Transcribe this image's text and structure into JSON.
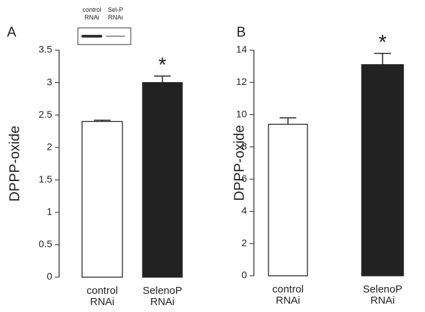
{
  "chart_data": [
    {
      "type": "bar",
      "panel_label": "A",
      "ylabel": "DPPP-oxide",
      "categories": [
        "control RNAi",
        "SelenoP RNAi"
      ],
      "values": [
        2.4,
        3.0
      ],
      "errors": [
        0.02,
        0.1
      ],
      "colors": [
        "#ffffff",
        "#222222"
      ],
      "annotation": "*",
      "inset_labels": [
        "control RNAi",
        "Sel-P RNAi"
      ],
      "ylim": [
        0,
        3.5
      ],
      "yticks": [
        0,
        0.5,
        1,
        1.5,
        2,
        2.5,
        3,
        3.5
      ]
    },
    {
      "type": "bar",
      "panel_label": "B",
      "ylabel": "DPPP-oxide",
      "categories": [
        "control RNAi",
        "SelenoP RNAi"
      ],
      "values": [
        9.4,
        13.1
      ],
      "errors": [
        0.4,
        0.7
      ],
      "colors": [
        "#ffffff",
        "#222222"
      ],
      "annotation": "*",
      "ylim": [
        0,
        14
      ],
      "yticks": [
        0,
        2,
        4,
        6,
        8,
        10,
        12,
        14
      ]
    }
  ]
}
